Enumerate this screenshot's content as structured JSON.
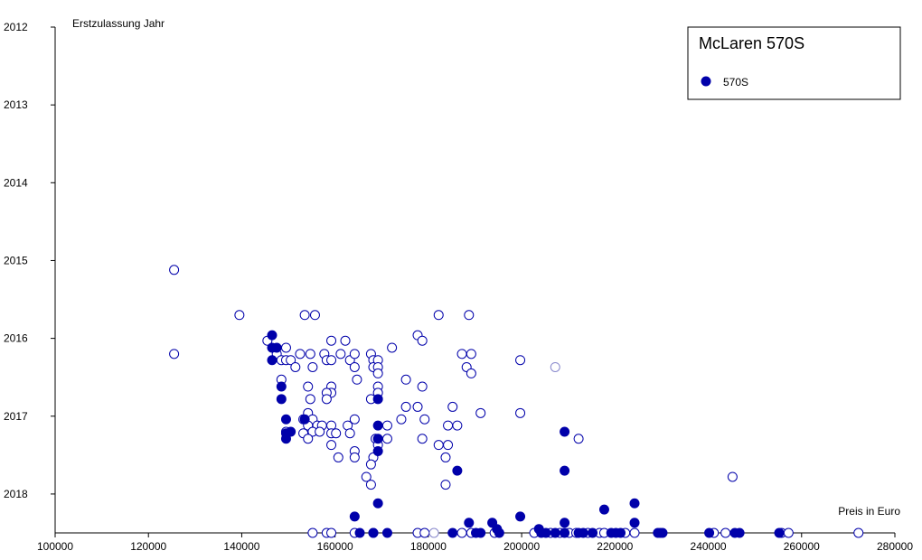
{
  "chart_data": {
    "type": "scatter",
    "title": "",
    "xlabel": "Preis in Euro",
    "ylabel": "Erstzulassung Jahr",
    "xlim": [
      100000,
      280000
    ],
    "ylim": [
      2012,
      2018.5
    ],
    "y_inverted": true,
    "x_ticks": [
      "100000",
      "120000",
      "140000",
      "160000",
      "180000",
      "200000",
      "220000",
      "240000",
      "260000",
      "280000"
    ],
    "y_ticks": [
      "2012",
      "2013",
      "2014",
      "2015",
      "2016",
      "2017",
      "2018"
    ],
    "grid": false,
    "legend": {
      "title": "McLaren 570S",
      "placement": "top-right",
      "entries": [
        "570S"
      ]
    },
    "colors": {
      "point": "#0000aa",
      "faded": "#8888cc"
    },
    "series": [
      {
        "name": "570S",
        "filled": [
          [
            146500,
            2015.96
          ],
          [
            146500,
            2016.12
          ],
          [
            147500,
            2016.12
          ],
          [
            146500,
            2016.28
          ],
          [
            148500,
            2016.62
          ],
          [
            148500,
            2016.78
          ],
          [
            149500,
            2017.04
          ],
          [
            150500,
            2017.2
          ],
          [
            149500,
            2017.22
          ],
          [
            149500,
            2017.29
          ],
          [
            153500,
            2017.04
          ],
          [
            169200,
            2016.78
          ],
          [
            169200,
            2017.12
          ],
          [
            169200,
            2017.29
          ],
          [
            169200,
            2017.45
          ],
          [
            169200,
            2018.12
          ],
          [
            164200,
            2018.29
          ],
          [
            165300,
            2018.5
          ],
          [
            168200,
            2018.5
          ],
          [
            171200,
            2018.5
          ],
          [
            186200,
            2017.7
          ],
          [
            188700,
            2018.37
          ],
          [
            185200,
            2018.5
          ],
          [
            190200,
            2018.5
          ],
          [
            191200,
            2018.5
          ],
          [
            193700,
            2018.37
          ],
          [
            194700,
            2018.45
          ],
          [
            195200,
            2018.5
          ],
          [
            199700,
            2018.29
          ],
          [
            203700,
            2018.45
          ],
          [
            204200,
            2018.5
          ],
          [
            205200,
            2018.5
          ],
          [
            207200,
            2018.5
          ],
          [
            209200,
            2017.2
          ],
          [
            209200,
            2017.7
          ],
          [
            209200,
            2018.37
          ],
          [
            209200,
            2018.5
          ],
          [
            212200,
            2018.5
          ],
          [
            213200,
            2018.5
          ],
          [
            215200,
            2018.5
          ],
          [
            217700,
            2018.2
          ],
          [
            219200,
            2018.5
          ],
          [
            220200,
            2018.5
          ],
          [
            221200,
            2018.5
          ],
          [
            224200,
            2018.12
          ],
          [
            224200,
            2018.37
          ],
          [
            229200,
            2018.5
          ],
          [
            230200,
            2018.5
          ],
          [
            240200,
            2018.5
          ],
          [
            245700,
            2018.5
          ],
          [
            246700,
            2018.5
          ],
          [
            255200,
            2018.5
          ]
        ],
        "open": [
          [
            125500,
            2015.12
          ],
          [
            125500,
            2016.2
          ],
          [
            139500,
            2015.7
          ],
          [
            145500,
            2016.03
          ],
          [
            147500,
            2016.2
          ],
          [
            149500,
            2016.12
          ],
          [
            148500,
            2016.28
          ],
          [
            149500,
            2016.28
          ],
          [
            150500,
            2016.28
          ],
          [
            148500,
            2016.53
          ],
          [
            149500,
            2017.2
          ],
          [
            151500,
            2016.37
          ],
          [
            152500,
            2016.2
          ],
          [
            153500,
            2015.7
          ],
          [
            155700,
            2015.7
          ],
          [
            154700,
            2016.2
          ],
          [
            155200,
            2016.37
          ],
          [
            157700,
            2016.2
          ],
          [
            159200,
            2016.03
          ],
          [
            158200,
            2016.28
          ],
          [
            159200,
            2016.28
          ],
          [
            161200,
            2016.2
          ],
          [
            162200,
            2016.03
          ],
          [
            163200,
            2016.28
          ],
          [
            164200,
            2016.2
          ],
          [
            164200,
            2016.37
          ],
          [
            164700,
            2016.53
          ],
          [
            154200,
            2016.62
          ],
          [
            159200,
            2016.62
          ],
          [
            159200,
            2016.7
          ],
          [
            158200,
            2016.7
          ],
          [
            154700,
            2016.78
          ],
          [
            158200,
            2016.78
          ],
          [
            154200,
            2016.96
          ],
          [
            153200,
            2017.04
          ],
          [
            155200,
            2017.04
          ],
          [
            156200,
            2017.12
          ],
          [
            154200,
            2017.12
          ],
          [
            157200,
            2017.12
          ],
          [
            159200,
            2017.12
          ],
          [
            155200,
            2017.2
          ],
          [
            156700,
            2017.2
          ],
          [
            153200,
            2017.22
          ],
          [
            159200,
            2017.22
          ],
          [
            160200,
            2017.22
          ],
          [
            154200,
            2017.29
          ],
          [
            159200,
            2017.37
          ],
          [
            160700,
            2017.53
          ],
          [
            162700,
            2017.12
          ],
          [
            163200,
            2017.22
          ],
          [
            164200,
            2017.04
          ],
          [
            164200,
            2017.45
          ],
          [
            164200,
            2017.53
          ],
          [
            167700,
            2016.2
          ],
          [
            168200,
            2016.28
          ],
          [
            168200,
            2016.37
          ],
          [
            169200,
            2016.28
          ],
          [
            169200,
            2016.37
          ],
          [
            169200,
            2016.45
          ],
          [
            169200,
            2016.62
          ],
          [
            169200,
            2016.7
          ],
          [
            167700,
            2016.78
          ],
          [
            168700,
            2017.29
          ],
          [
            169200,
            2017.37
          ],
          [
            168200,
            2017.53
          ],
          [
            167700,
            2017.62
          ],
          [
            166700,
            2017.78
          ],
          [
            167700,
            2017.88
          ],
          [
            171200,
            2017.12
          ],
          [
            171200,
            2017.29
          ],
          [
            172200,
            2016.12
          ],
          [
            174200,
            2017.04
          ],
          [
            175200,
            2016.53
          ],
          [
            175200,
            2016.88
          ],
          [
            177700,
            2015.96
          ],
          [
            177700,
            2016.88
          ],
          [
            178700,
            2016.03
          ],
          [
            178700,
            2016.62
          ],
          [
            179200,
            2017.04
          ],
          [
            178700,
            2017.29
          ],
          [
            182200,
            2015.7
          ],
          [
            182200,
            2017.37
          ],
          [
            183700,
            2017.53
          ],
          [
            184200,
            2017.12
          ],
          [
            184200,
            2017.37
          ],
          [
            183700,
            2017.88
          ],
          [
            185200,
            2016.88
          ],
          [
            186200,
            2017.12
          ],
          [
            187200,
            2016.2
          ],
          [
            188200,
            2016.37
          ],
          [
            188700,
            2015.7
          ],
          [
            189200,
            2016.2
          ],
          [
            189200,
            2016.45
          ],
          [
            191200,
            2016.96
          ],
          [
            199700,
            2016.28
          ],
          [
            199700,
            2016.96
          ],
          [
            212200,
            2017.29
          ],
          [
            245200,
            2017.78
          ],
          [
            155200,
            2018.5
          ],
          [
            158200,
            2018.5
          ],
          [
            159200,
            2018.5
          ],
          [
            164200,
            2018.5
          ],
          [
            168200,
            2018.5
          ],
          [
            177700,
            2018.5
          ],
          [
            179200,
            2018.5
          ],
          [
            187200,
            2018.5
          ],
          [
            189200,
            2018.5
          ],
          [
            194200,
            2018.5
          ],
          [
            202700,
            2018.5
          ],
          [
            206200,
            2018.5
          ],
          [
            208200,
            2018.5
          ],
          [
            210200,
            2018.5
          ],
          [
            211700,
            2018.5
          ],
          [
            214200,
            2018.5
          ],
          [
            216700,
            2018.5
          ],
          [
            217700,
            2018.5
          ],
          [
            222200,
            2018.5
          ],
          [
            224200,
            2018.5
          ],
          [
            229700,
            2018.5
          ],
          [
            241200,
            2018.5
          ],
          [
            243700,
            2018.5
          ],
          [
            255700,
            2018.5
          ],
          [
            257200,
            2018.5
          ],
          [
            272200,
            2018.5
          ]
        ],
        "faded": [
          [
            207200,
            2016.37
          ],
          [
            181200,
            2018.5
          ]
        ]
      }
    ]
  }
}
